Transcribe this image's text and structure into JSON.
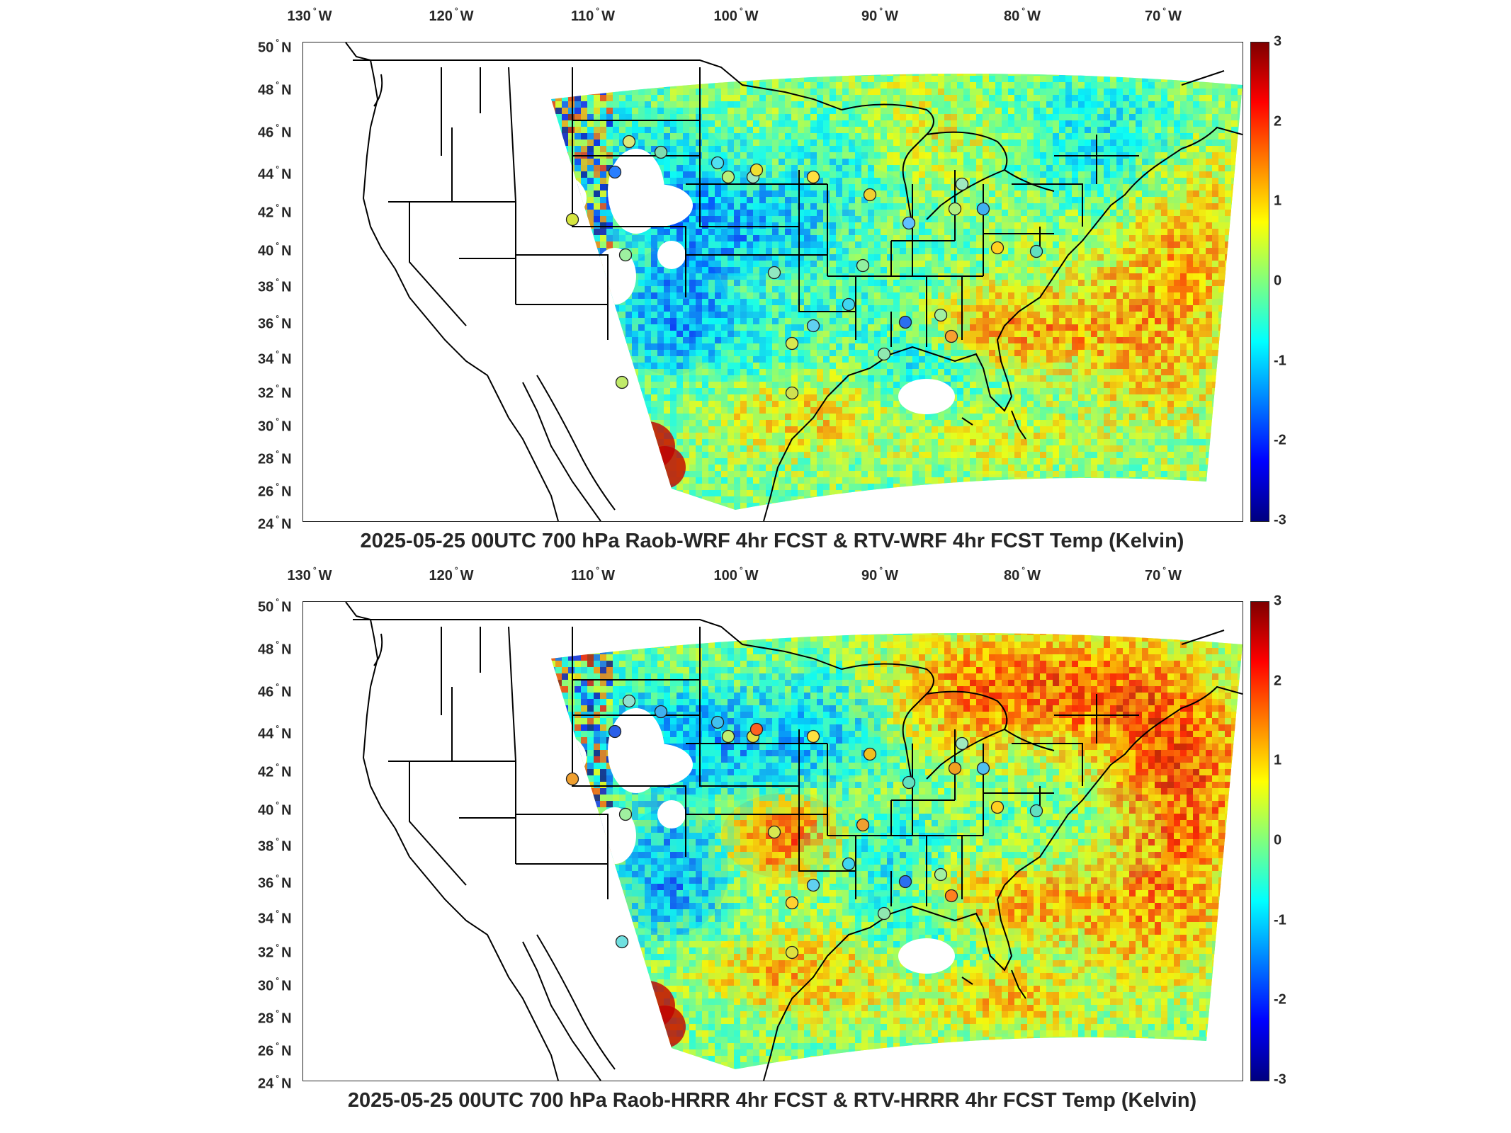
{
  "panels": [
    {
      "title": "2025-05-25 00UTC 700 hPa Raob-WRF 4hr FCST & RTV-WRF 4hr FCST Temp (Kelvin)",
      "station_colors": [
        "#d9e87a",
        "#7fdcb0",
        "#2a7fff",
        "#d6e640",
        "#b9f07a",
        "#9fe8c0",
        "#9ef0a0",
        "#c0ea6a",
        "#4fe0f0",
        "#f0e030",
        "#ffe040",
        "#f0d030",
        "#b0f080",
        "#90f0a0",
        "#60c0ff",
        "#40b0f0",
        "#90e8c0",
        "#d8e850",
        "#3fd6f0",
        "#2a6ff0",
        "#a0f0a0",
        "#d0e050",
        "#f8a030",
        "#8fe8b0",
        "#60d0f0",
        "#ffd020",
        "#9fe8c0",
        "#60e0c0"
      ]
    },
    {
      "title": "2025-05-25 00UTC 700 hPa Raob-HRRR 4hr FCST & RTV-HRRR 4hr FCST Temp (Kelvin)",
      "station_colors": [
        "#8fe0d0",
        "#40b0f0",
        "#2a5fe8",
        "#f0a030",
        "#c0f070",
        "#e0e040",
        "#a0f0a0",
        "#70e0e0",
        "#40c0f0",
        "#ff6020",
        "#ffe040",
        "#f0c020",
        "#f0a020",
        "#f0a030",
        "#60e0c0",
        "#50c0f0",
        "#d8e850",
        "#ffd030",
        "#3fd6f0",
        "#2a6ff0",
        "#a0f0a0",
        "#e0e040",
        "#ff8020",
        "#8fe8b0",
        "#60d0f0",
        "#ffd020",
        "#9fe8c0",
        "#60e0c0"
      ]
    }
  ],
  "longitude_labels": [
    "130 W",
    "120 W",
    "110 W",
    "100 W",
    "90 W",
    "80 W",
    "70 W"
  ],
  "latitude_labels": [
    "50 N",
    "48 N",
    "46 N",
    "44 N",
    "42 N",
    "40 N",
    "38 N",
    "36 N",
    "34 N",
    "32 N",
    "30 N",
    "28 N",
    "26 N",
    "24 N"
  ],
  "colorbar": {
    "ticks": [
      "3",
      "2",
      "1",
      "0",
      "-1",
      "-2",
      "-3"
    ],
    "range": [
      -3,
      3
    ],
    "colormap": "jet",
    "colors": [
      "#00007f",
      "#0000ff",
      "#007fff",
      "#00ffff",
      "#7fff7f",
      "#ffff00",
      "#ff7f00",
      "#ff0000",
      "#7f0000"
    ]
  }
}
